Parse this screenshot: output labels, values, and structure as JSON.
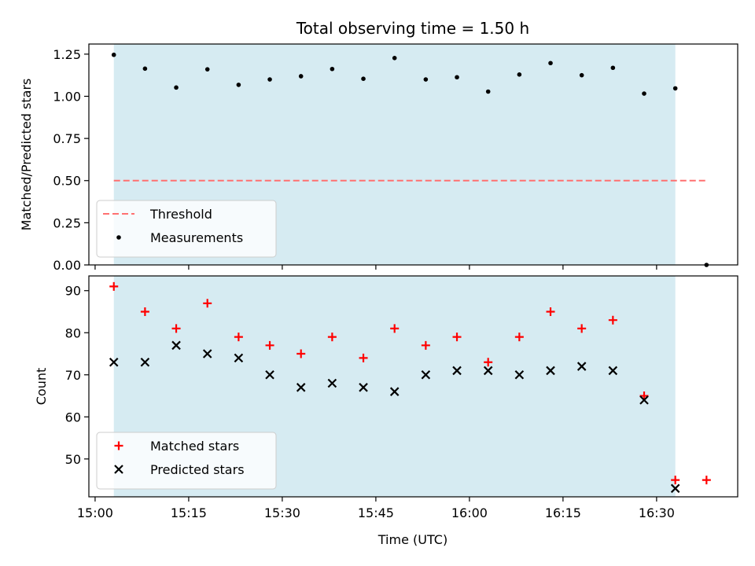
{
  "chart_data": {
    "title": "Total observing time = 1.50 h",
    "xlabel": "Time (UTC)",
    "x_ticks": [
      "15:00",
      "15:15",
      "15:30",
      "15:45",
      "16:00",
      "16:15",
      "16:30"
    ],
    "x_range": [
      "14:59",
      "16:43"
    ],
    "shaded_interval": [
      "15:03",
      "16:33"
    ],
    "shade_color": "#add8e6",
    "times": [
      "15:03",
      "15:08",
      "15:13",
      "15:18",
      "15:23",
      "15:28",
      "15:33",
      "15:38",
      "15:43",
      "15:48",
      "15:53",
      "15:58",
      "16:03",
      "16:08",
      "16:13",
      "16:18",
      "16:23",
      "16:28",
      "16:33",
      "16:38"
    ],
    "panels": [
      {
        "type": "scatter",
        "ylabel": "Matched/Predicted stars",
        "ylim": [
          0,
          1.31
        ],
        "y_ticks": [
          "0.00",
          "0.25",
          "0.50",
          "0.75",
          "1.00",
          "1.25"
        ],
        "grid": false,
        "legend_position": "lower-left",
        "threshold": {
          "name": "Threshold",
          "value": 0.5,
          "x_range": [
            "15:03",
            "16:38"
          ],
          "color": "#ff7070",
          "style": "dashed"
        },
        "series": [
          {
            "name": "Measurements",
            "marker": "dot",
            "color": "#000000",
            "values": [
              1.246,
              1.164,
              1.052,
              1.16,
              1.068,
              1.1,
              1.119,
              1.162,
              1.104,
              1.227,
              1.1,
              1.113,
              1.028,
              1.129,
              1.197,
              1.125,
              1.169,
              1.016,
              1.047,
              0.0
            ]
          }
        ]
      },
      {
        "type": "scatter",
        "ylabel": "Count",
        "ylim": [
          41,
          93.5
        ],
        "y_ticks": [
          "50",
          "60",
          "70",
          "80",
          "90"
        ],
        "grid": false,
        "legend_position": "lower-left",
        "series": [
          {
            "name": "Matched stars",
            "marker": "plus",
            "color": "#ff0000",
            "values": [
              91,
              85,
              81,
              87,
              79,
              77,
              75,
              79,
              74,
              81,
              77,
              79,
              73,
              79,
              85,
              81,
              83,
              65,
              45,
              45
            ]
          },
          {
            "name": "Predicted stars",
            "marker": "x",
            "color": "#000000",
            "values": [
              73,
              73,
              77,
              75,
              74,
              70,
              67,
              68,
              67,
              66,
              70,
              71,
              71,
              70,
              71,
              72,
              71,
              64,
              43,
              null
            ]
          }
        ]
      }
    ]
  }
}
